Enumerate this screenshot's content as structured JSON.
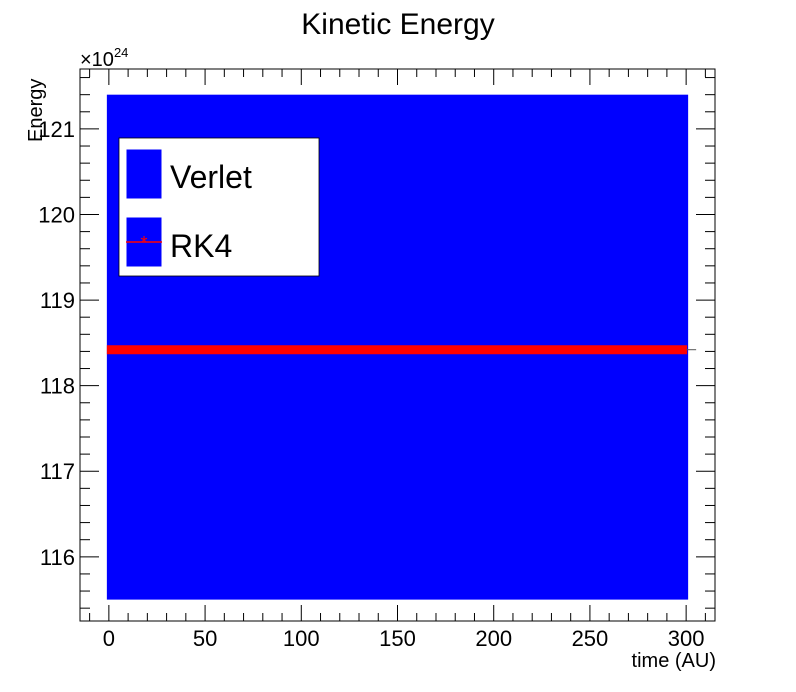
{
  "chart_data": {
    "type": "line",
    "title": "Kinetic Energy",
    "xlabel": "time (AU)",
    "ylabel": "Energy",
    "y_multiplier": "×10",
    "y_exponent": "24",
    "xlim": [
      -15,
      315
    ],
    "ylim": [
      115.25,
      121.7
    ],
    "x_ticks": [
      0,
      50,
      100,
      150,
      200,
      250,
      300
    ],
    "x_tick_labels": [
      "0",
      "50",
      "100",
      "150",
      "200",
      "250",
      "300"
    ],
    "y_ticks": [
      116,
      117,
      118,
      119,
      120,
      121
    ],
    "y_tick_labels": [
      "116",
      "117",
      "118",
      "119",
      "120",
      "121"
    ],
    "grid": false,
    "legend_position": "top-left",
    "series": [
      {
        "name": "Verlet",
        "color": "#0000ff",
        "x_range": [
          0,
          300
        ],
        "y_min": 115.5,
        "y_max": 121.4,
        "style": "dense oscillation band"
      },
      {
        "name": "RK4",
        "color": "#ff0000",
        "x_range": [
          0,
          300
        ],
        "y_value": 118.42,
        "marker": "star"
      }
    ]
  }
}
